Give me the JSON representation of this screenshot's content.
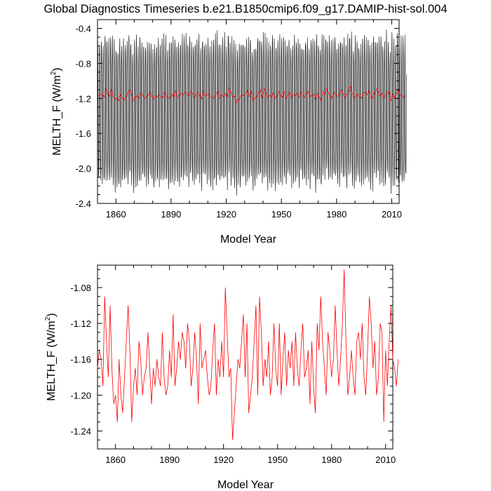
{
  "title": "Global Diagnostics Timeseries b.e21.B1850cmip6.f09_g17.DAMIP-hist-sol.004",
  "chart_data": [
    {
      "type": "line",
      "xlabel": "Model Year",
      "ylabel_main": "MELTH_F (W/m",
      "ylabel_sup": "2",
      "ylabel_close": ")",
      "xlim": [
        1850,
        2014
      ],
      "ylim": [
        -2.4,
        -0.3
      ],
      "xticks": [
        1860,
        1890,
        1920,
        1950,
        1980,
        2010
      ],
      "yticks": [
        -2.4,
        -2.0,
        -1.6,
        -1.2,
        -0.8,
        -0.4
      ],
      "ytick_labels": [
        "-2.4",
        "-2.0",
        "-1.6",
        "-1.2",
        "-0.8",
        "-0.4"
      ],
      "monthly_series": {
        "color": "#000000",
        "seasonal_max": -0.55,
        "seasonal_min": -2.15,
        "annual_mean": -1.17
      },
      "annual_series": {
        "color": "#ff0000",
        "ref": "annual_means"
      }
    },
    {
      "type": "line",
      "xlabel": "Model Year",
      "ylabel_main": "MELTH_F (W/m",
      "ylabel_sup": "2",
      "ylabel_close": ")",
      "xlim": [
        1850,
        2014
      ],
      "ylim": [
        -1.26,
        -1.055
      ],
      "xticks": [
        1860,
        1890,
        1920,
        1950,
        1980,
        2010
      ],
      "yticks": [
        -1.24,
        -1.2,
        -1.16,
        -1.12,
        -1.08
      ],
      "ytick_labels": [
        "-1.24",
        "-1.20",
        "-1.16",
        "-1.12",
        "-1.08"
      ],
      "series": [
        {
          "color": "#ff0000",
          "ref": "annual_means"
        }
      ]
    }
  ],
  "annual_means": {
    "start_year": 1850,
    "values": [
      -1.17,
      -1.15,
      -1.16,
      -1.19,
      -1.09,
      -1.14,
      -1.18,
      -1.1,
      -1.17,
      -1.21,
      -1.2,
      -1.23,
      -1.16,
      -1.2,
      -1.22,
      -1.18,
      -1.14,
      -1.1,
      -1.15,
      -1.23,
      -1.19,
      -1.17,
      -1.2,
      -1.14,
      -1.16,
      -1.2,
      -1.18,
      -1.17,
      -1.13,
      -1.17,
      -1.21,
      -1.17,
      -1.19,
      -1.16,
      -1.18,
      -1.19,
      -1.13,
      -1.18,
      -1.2,
      -1.19,
      -1.15,
      -1.18,
      -1.11,
      -1.19,
      -1.17,
      -1.14,
      -1.16,
      -1.13,
      -1.14,
      -1.17,
      -1.12,
      -1.14,
      -1.19,
      -1.17,
      -1.13,
      -1.16,
      -1.21,
      -1.12,
      -1.17,
      -1.16,
      -1.15,
      -1.18,
      -1.2,
      -1.19,
      -1.15,
      -1.12,
      -1.2,
      -1.16,
      -1.18,
      -1.14,
      -1.18,
      -1.08,
      -1.13,
      -1.18,
      -1.17,
      -1.25,
      -1.22,
      -1.19,
      -1.16,
      -1.17,
      -1.14,
      -1.11,
      -1.18,
      -1.12,
      -1.22,
      -1.2,
      -1.18,
      -1.14,
      -1.1,
      -1.2,
      -1.09,
      -1.13,
      -1.19,
      -1.16,
      -1.18,
      -1.14,
      -1.2,
      -1.18,
      -1.12,
      -1.17,
      -1.19,
      -1.12,
      -1.2,
      -1.16,
      -1.13,
      -1.19,
      -1.15,
      -1.17,
      -1.14,
      -1.19,
      -1.13,
      -1.17,
      -1.19,
      -1.15,
      -1.12,
      -1.18,
      -1.17,
      -1.15,
      -1.21,
      -1.14,
      -1.19,
      -1.22,
      -1.12,
      -1.15,
      -1.09,
      -1.14,
      -1.17,
      -1.2,
      -1.13,
      -1.15,
      -1.18,
      -1.16,
      -1.1,
      -1.15,
      -1.19,
      -1.16,
      -1.12,
      -1.06,
      -1.14,
      -1.2,
      -1.18,
      -1.15,
      -1.18,
      -1.2,
      -1.14,
      -1.13,
      -1.16,
      -1.12,
      -1.18,
      -1.2,
      -1.15,
      -1.09,
      -1.12,
      -1.17,
      -1.14,
      -1.2,
      -1.18,
      -1.12,
      -1.13,
      -1.23,
      -1.15,
      -1.19,
      -1.14,
      -1.1,
      -1.16,
      -1.17,
      -1.19,
      -1.16
    ]
  }
}
